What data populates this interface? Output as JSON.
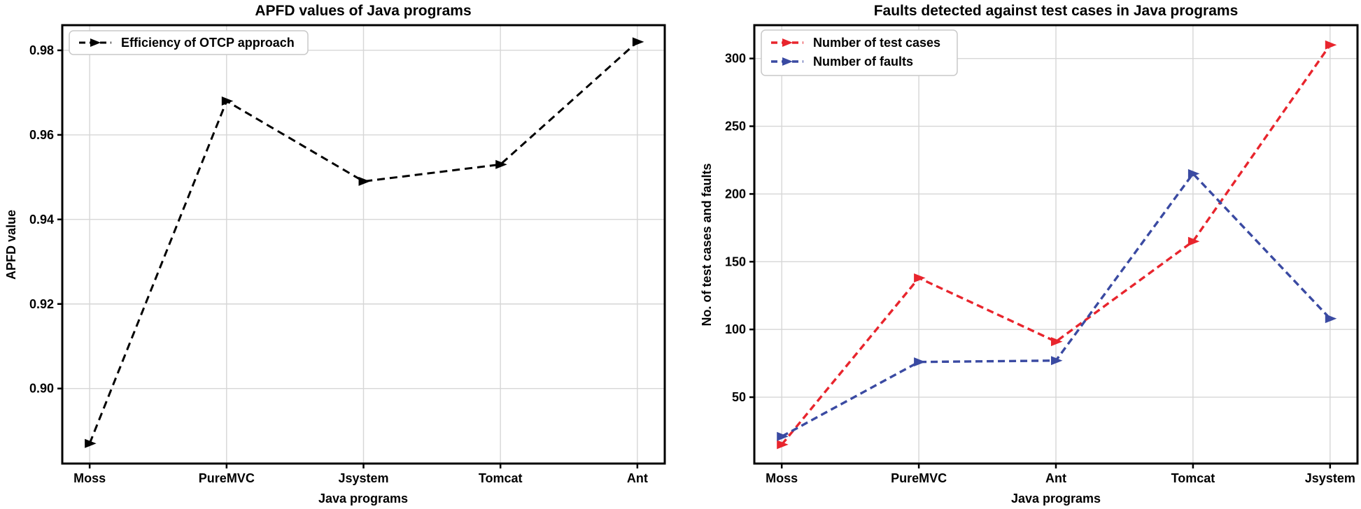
{
  "figure": {
    "description": "Two side-by-side line charts comparing Java programs",
    "background": "#ffffff"
  },
  "chart_data": [
    {
      "type": "line",
      "title": "APFD values of Java programs",
      "xlabel": "Java programs",
      "ylabel": "APFD value",
      "categories": [
        "Moss",
        "PureMVC",
        "Jsystem",
        "Tomcat",
        "Ant"
      ],
      "yticks": [
        0.9,
        0.92,
        0.94,
        0.96,
        0.98
      ],
      "ytick_labels": [
        "0.90",
        "0.92",
        "0.94",
        "0.96",
        "0.98"
      ],
      "ylim": [
        0.88225,
        0.98595
      ],
      "grid": true,
      "legend_position": "upper left",
      "line_style": "dashed",
      "marker": "triangle-right",
      "series": [
        {
          "name": "Efficiency of OTCP approach",
          "color": "#000000",
          "values": [
            0.887,
            0.968,
            0.949,
            0.953,
            0.982
          ]
        }
      ]
    },
    {
      "type": "line",
      "title": "Faults detected against test cases in Java programs",
      "xlabel": "Java programs",
      "ylabel": "No. of test cases and faults",
      "categories": [
        "Moss",
        "PureMVC",
        "Ant",
        "Tomcat",
        "Jsystem"
      ],
      "yticks": [
        50,
        100,
        150,
        200,
        250,
        300
      ],
      "ytick_labels": [
        "50",
        "100",
        "150",
        "200",
        "250",
        "300"
      ],
      "ylim": [
        1.0,
        324.6
      ],
      "grid": true,
      "legend_position": "upper left",
      "line_style": "dashed",
      "marker": "triangle-right",
      "series": [
        {
          "name": "Number of test cases",
          "color": "#e8252d",
          "values": [
            15,
            138,
            91,
            165,
            310
          ]
        },
        {
          "name": "Number of faults",
          "color": "#3a4aa2",
          "values": [
            21,
            76,
            77,
            215,
            108
          ]
        }
      ]
    }
  ],
  "style": {
    "grid_color": "#d6d6d6",
    "spine_color": "#000000",
    "legend_border_color": "#c9c9c9",
    "legend_background": "#ffffff"
  }
}
